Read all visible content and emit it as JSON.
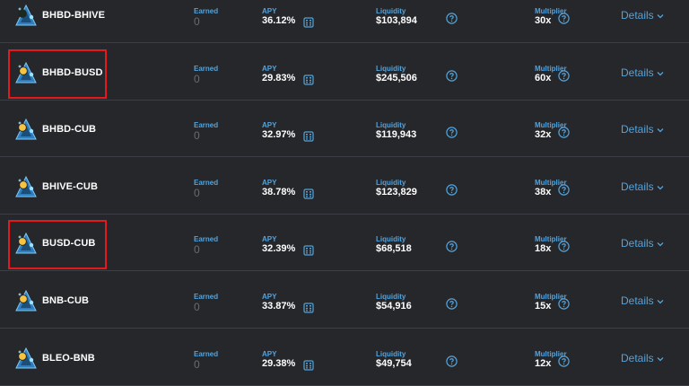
{
  "colors": {
    "background": "#26272b",
    "separator": "#3d3e45",
    "label": "#53a3dc",
    "highlight": "#e5181f"
  },
  "labels": {
    "earned": "Earned",
    "apy": "APY",
    "liquidity": "Liquidity",
    "multiplier": "Multiplier",
    "details": "Details"
  },
  "icons": {
    "calculator": "calculator-icon",
    "help": "question-circle-icon",
    "chevron": "chevron-down-icon",
    "token": "pair-logo-icon"
  },
  "farms": [
    {
      "pair": "BHBD-BHIVE",
      "earned": "0",
      "apy": "36.12%",
      "liquidity": "$103,894",
      "multiplier": "30x",
      "highlighted": false
    },
    {
      "pair": "BHBD-BUSD",
      "earned": "0",
      "apy": "29.83%",
      "liquidity": "$245,506",
      "multiplier": "60x",
      "highlighted": true
    },
    {
      "pair": "BHBD-CUB",
      "earned": "0",
      "apy": "32.97%",
      "liquidity": "$119,943",
      "multiplier": "32x",
      "highlighted": false
    },
    {
      "pair": "BHIVE-CUB",
      "earned": "0",
      "apy": "38.78%",
      "liquidity": "$123,829",
      "multiplier": "38x",
      "highlighted": false
    },
    {
      "pair": "BUSD-CUB",
      "earned": "0",
      "apy": "32.39%",
      "liquidity": "$68,518",
      "multiplier": "18x",
      "highlighted": true
    },
    {
      "pair": "BNB-CUB",
      "earned": "0",
      "apy": "33.87%",
      "liquidity": "$54,916",
      "multiplier": "15x",
      "highlighted": false
    },
    {
      "pair": "BLEO-BNB",
      "earned": "0",
      "apy": "29.38%",
      "liquidity": "$49,754",
      "multiplier": "12x",
      "highlighted": false
    }
  ]
}
